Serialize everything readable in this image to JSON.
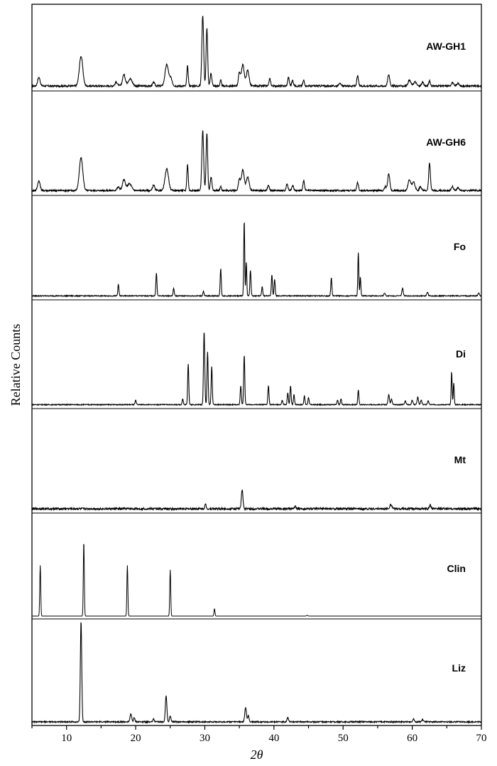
{
  "chart_data": {
    "type": "line",
    "xlabel": "2θ",
    "ylabel": "Relative Counts",
    "xlim": [
      5,
      70
    ],
    "x_ticks": [
      10,
      20,
      30,
      40,
      50,
      60,
      70
    ],
    "stacked": true,
    "grid": false,
    "series": [
      {
        "name": "AW-GH1",
        "baseline": 0.03,
        "noise": 0.012,
        "peaks": [
          {
            "x": 6.0,
            "h": 0.12,
            "w": 0.18
          },
          {
            "x": 12.1,
            "h": 0.42,
            "w": 0.25
          },
          {
            "x": 17.2,
            "h": 0.05,
            "w": 0.2
          },
          {
            "x": 18.3,
            "h": 0.16,
            "w": 0.2
          },
          {
            "x": 19.2,
            "h": 0.1,
            "w": 0.3
          },
          {
            "x": 22.6,
            "h": 0.05,
            "w": 0.15
          },
          {
            "x": 24.5,
            "h": 0.3,
            "w": 0.25
          },
          {
            "x": 25.1,
            "h": 0.1,
            "w": 0.2
          },
          {
            "x": 27.5,
            "h": 0.28,
            "w": 0.1
          },
          {
            "x": 29.7,
            "h": 1.0,
            "w": 0.13
          },
          {
            "x": 30.3,
            "h": 0.82,
            "w": 0.11
          },
          {
            "x": 30.9,
            "h": 0.18,
            "w": 0.12
          },
          {
            "x": 32.3,
            "h": 0.08,
            "w": 0.1
          },
          {
            "x": 35.0,
            "h": 0.18,
            "w": 0.15
          },
          {
            "x": 35.5,
            "h": 0.3,
            "w": 0.2
          },
          {
            "x": 36.2,
            "h": 0.22,
            "w": 0.2
          },
          {
            "x": 39.4,
            "h": 0.1,
            "w": 0.12
          },
          {
            "x": 42.1,
            "h": 0.12,
            "w": 0.12
          },
          {
            "x": 42.7,
            "h": 0.08,
            "w": 0.12
          },
          {
            "x": 44.3,
            "h": 0.08,
            "w": 0.12
          },
          {
            "x": 49.5,
            "h": 0.05,
            "w": 0.12
          },
          {
            "x": 52.1,
            "h": 0.14,
            "w": 0.12
          },
          {
            "x": 56.6,
            "h": 0.16,
            "w": 0.15
          },
          {
            "x": 59.6,
            "h": 0.08,
            "w": 0.2
          },
          {
            "x": 60.4,
            "h": 0.06,
            "w": 0.2
          },
          {
            "x": 61.5,
            "h": 0.05,
            "w": 0.15
          },
          {
            "x": 62.5,
            "h": 0.07,
            "w": 0.12
          },
          {
            "x": 65.8,
            "h": 0.05,
            "w": 0.15
          },
          {
            "x": 66.6,
            "h": 0.04,
            "w": 0.15
          }
        ]
      },
      {
        "name": "AW-GH6",
        "baseline": 0.03,
        "noise": 0.012,
        "peaks": [
          {
            "x": 6.0,
            "h": 0.14,
            "w": 0.18
          },
          {
            "x": 12.1,
            "h": 0.48,
            "w": 0.25
          },
          {
            "x": 17.5,
            "h": 0.05,
            "w": 0.2
          },
          {
            "x": 18.3,
            "h": 0.16,
            "w": 0.2
          },
          {
            "x": 19.1,
            "h": 0.1,
            "w": 0.3
          },
          {
            "x": 22.6,
            "h": 0.08,
            "w": 0.15
          },
          {
            "x": 24.5,
            "h": 0.32,
            "w": 0.25
          },
          {
            "x": 27.5,
            "h": 0.38,
            "w": 0.1
          },
          {
            "x": 29.7,
            "h": 0.88,
            "w": 0.13
          },
          {
            "x": 30.3,
            "h": 0.85,
            "w": 0.11
          },
          {
            "x": 30.9,
            "h": 0.2,
            "w": 0.12
          },
          {
            "x": 32.3,
            "h": 0.06,
            "w": 0.1
          },
          {
            "x": 35.0,
            "h": 0.16,
            "w": 0.15
          },
          {
            "x": 35.5,
            "h": 0.3,
            "w": 0.2
          },
          {
            "x": 36.2,
            "h": 0.2,
            "w": 0.2
          },
          {
            "x": 39.2,
            "h": 0.08,
            "w": 0.12
          },
          {
            "x": 41.9,
            "h": 0.1,
            "w": 0.12
          },
          {
            "x": 42.7,
            "h": 0.08,
            "w": 0.12
          },
          {
            "x": 44.3,
            "h": 0.14,
            "w": 0.12
          },
          {
            "x": 52.1,
            "h": 0.12,
            "w": 0.12
          },
          {
            "x": 56.1,
            "h": 0.06,
            "w": 0.12
          },
          {
            "x": 56.6,
            "h": 0.25,
            "w": 0.15
          },
          {
            "x": 59.6,
            "h": 0.16,
            "w": 0.2
          },
          {
            "x": 60.2,
            "h": 0.12,
            "w": 0.2
          },
          {
            "x": 61.2,
            "h": 0.06,
            "w": 0.15
          },
          {
            "x": 62.5,
            "h": 0.4,
            "w": 0.12
          },
          {
            "x": 65.8,
            "h": 0.06,
            "w": 0.15
          },
          {
            "x": 66.6,
            "h": 0.04,
            "w": 0.15
          }
        ]
      },
      {
        "name": "Fo",
        "baseline": 0.015,
        "noise": 0.006,
        "peaks": [
          {
            "x": 17.5,
            "h": 0.15,
            "w": 0.08
          },
          {
            "x": 23.0,
            "h": 0.3,
            "w": 0.08
          },
          {
            "x": 25.5,
            "h": 0.1,
            "w": 0.08
          },
          {
            "x": 29.8,
            "h": 0.06,
            "w": 0.08
          },
          {
            "x": 32.3,
            "h": 0.36,
            "w": 0.08
          },
          {
            "x": 35.7,
            "h": 1.0,
            "w": 0.07
          },
          {
            "x": 36.0,
            "h": 0.45,
            "w": 0.07
          },
          {
            "x": 36.6,
            "h": 0.34,
            "w": 0.08
          },
          {
            "x": 38.3,
            "h": 0.12,
            "w": 0.08
          },
          {
            "x": 39.7,
            "h": 0.28,
            "w": 0.08
          },
          {
            "x": 40.1,
            "h": 0.22,
            "w": 0.08
          },
          {
            "x": 48.3,
            "h": 0.24,
            "w": 0.08
          },
          {
            "x": 52.2,
            "h": 0.58,
            "w": 0.07
          },
          {
            "x": 52.5,
            "h": 0.25,
            "w": 0.07
          },
          {
            "x": 56.0,
            "h": 0.04,
            "w": 0.1
          },
          {
            "x": 58.6,
            "h": 0.1,
            "w": 0.1
          },
          {
            "x": 62.2,
            "h": 0.05,
            "w": 0.1
          },
          {
            "x": 69.6,
            "h": 0.04,
            "w": 0.1
          }
        ]
      },
      {
        "name": "Di",
        "baseline": 0.015,
        "noise": 0.006,
        "peaks": [
          {
            "x": 20.0,
            "h": 0.06,
            "w": 0.08
          },
          {
            "x": 26.8,
            "h": 0.08,
            "w": 0.08
          },
          {
            "x": 27.6,
            "h": 0.56,
            "w": 0.08
          },
          {
            "x": 29.9,
            "h": 1.0,
            "w": 0.09
          },
          {
            "x": 30.4,
            "h": 0.72,
            "w": 0.08
          },
          {
            "x": 31.0,
            "h": 0.52,
            "w": 0.08
          },
          {
            "x": 35.2,
            "h": 0.26,
            "w": 0.08
          },
          {
            "x": 35.7,
            "h": 0.68,
            "w": 0.08
          },
          {
            "x": 39.2,
            "h": 0.26,
            "w": 0.08
          },
          {
            "x": 41.2,
            "h": 0.06,
            "w": 0.08
          },
          {
            "x": 42.0,
            "h": 0.16,
            "w": 0.08
          },
          {
            "x": 42.4,
            "h": 0.26,
            "w": 0.08
          },
          {
            "x": 42.9,
            "h": 0.14,
            "w": 0.08
          },
          {
            "x": 44.4,
            "h": 0.12,
            "w": 0.08
          },
          {
            "x": 45.0,
            "h": 0.1,
            "w": 0.08
          },
          {
            "x": 49.2,
            "h": 0.06,
            "w": 0.08
          },
          {
            "x": 49.7,
            "h": 0.08,
            "w": 0.08
          },
          {
            "x": 52.2,
            "h": 0.2,
            "w": 0.08
          },
          {
            "x": 56.6,
            "h": 0.14,
            "w": 0.1
          },
          {
            "x": 57.0,
            "h": 0.08,
            "w": 0.1
          },
          {
            "x": 59.0,
            "h": 0.05,
            "w": 0.1
          },
          {
            "x": 60.0,
            "h": 0.06,
            "w": 0.1
          },
          {
            "x": 60.8,
            "h": 0.1,
            "w": 0.1
          },
          {
            "x": 61.3,
            "h": 0.06,
            "w": 0.1
          },
          {
            "x": 62.3,
            "h": 0.05,
            "w": 0.1
          },
          {
            "x": 65.7,
            "h": 0.45,
            "w": 0.07
          },
          {
            "x": 66.0,
            "h": 0.3,
            "w": 0.07
          }
        ]
      },
      {
        "name": "Mt",
        "baseline": 0.02,
        "noise": 0.014,
        "peaks": [
          {
            "x": 30.1,
            "h": 0.06,
            "w": 0.1
          },
          {
            "x": 35.4,
            "h": 0.26,
            "w": 0.12
          },
          {
            "x": 43.1,
            "h": 0.04,
            "w": 0.1
          },
          {
            "x": 56.9,
            "h": 0.06,
            "w": 0.15
          },
          {
            "x": 62.6,
            "h": 0.05,
            "w": 0.12
          }
        ]
      },
      {
        "name": "Clin",
        "baseline": 0.0,
        "noise": 0.0,
        "peaks": [
          {
            "x": 6.2,
            "h": 0.68,
            "w": 0.07
          },
          {
            "x": 12.5,
            "h": 1.0,
            "w": 0.07
          },
          {
            "x": 18.8,
            "h": 0.68,
            "w": 0.07
          },
          {
            "x": 25.0,
            "h": 0.62,
            "w": 0.07
          },
          {
            "x": 31.4,
            "h": 0.1,
            "w": 0.07
          },
          {
            "x": 44.8,
            "h": 0.01,
            "w": 0.1
          }
        ]
      },
      {
        "name": "Liz",
        "baseline": 0.008,
        "noise": 0.006,
        "peaks": [
          {
            "x": 12.1,
            "h": 1.0,
            "w": 0.1
          },
          {
            "x": 19.3,
            "h": 0.08,
            "w": 0.12
          },
          {
            "x": 19.8,
            "h": 0.04,
            "w": 0.1
          },
          {
            "x": 22.6,
            "h": 0.03,
            "w": 0.1
          },
          {
            "x": 24.4,
            "h": 0.26,
            "w": 0.11
          },
          {
            "x": 25.0,
            "h": 0.06,
            "w": 0.1
          },
          {
            "x": 35.9,
            "h": 0.14,
            "w": 0.12
          },
          {
            "x": 36.3,
            "h": 0.06,
            "w": 0.1
          },
          {
            "x": 42.0,
            "h": 0.04,
            "w": 0.12
          },
          {
            "x": 60.2,
            "h": 0.03,
            "w": 0.12
          },
          {
            "x": 61.5,
            "h": 0.02,
            "w": 0.12
          }
        ]
      }
    ]
  }
}
